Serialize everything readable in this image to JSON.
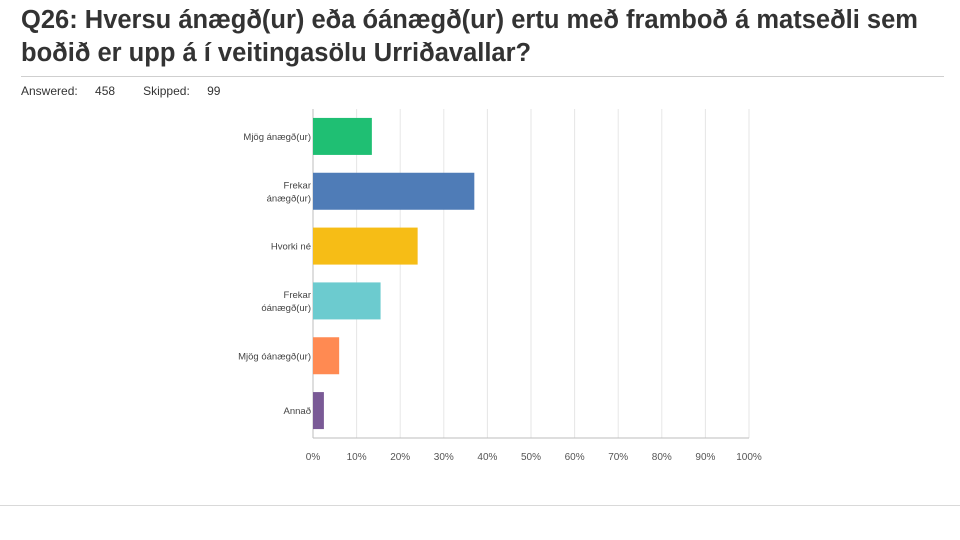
{
  "question": {
    "title": "Q26: Hversu  ánægð(ur) eða óánægð(ur) ertu með framboð á matseðli sem boðið er upp á í veitingasölu Urriðavallar?"
  },
  "stats": {
    "answered_label": "Answered:",
    "answered": "458",
    "skipped_label": "Skipped:",
    "skipped": "99"
  },
  "chart_data": {
    "type": "bar",
    "orientation": "horizontal",
    "categories": [
      "Mjög ánægð(ur)",
      "Frekar ánægð(ur)",
      "Hvorki né",
      "Frekar óánægð(ur)",
      "Mjög óánægð(ur)",
      "Annað"
    ],
    "category_lines": [
      [
        "Mjög ánægð(ur)"
      ],
      [
        "Frekar",
        "ánægð(ur)"
      ],
      [
        "Hvorki né"
      ],
      [
        "Frekar",
        "óánægð(ur)"
      ],
      [
        "Mjög óánægð(ur)"
      ],
      [
        "Annað"
      ]
    ],
    "values": [
      13.5,
      37,
      24,
      15.5,
      6,
      2.5
    ],
    "colors": [
      "#1fbf73",
      "#4f7cb7",
      "#f6bd16",
      "#6ccbcf",
      "#ff8a52",
      "#7a5a96"
    ],
    "xlim": [
      0,
      100
    ],
    "xticks": [
      "0%",
      "10%",
      "20%",
      "30%",
      "40%",
      "50%",
      "60%",
      "70%",
      "80%",
      "90%",
      "100%"
    ],
    "grid": true
  }
}
